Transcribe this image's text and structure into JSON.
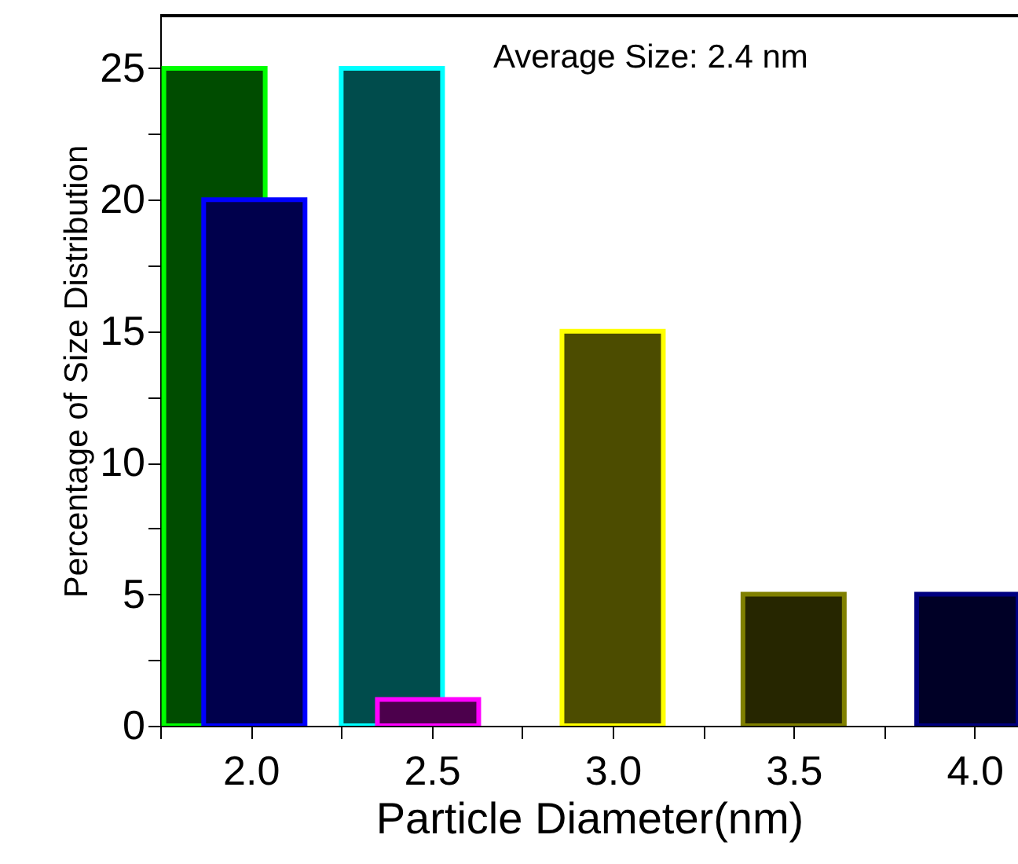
{
  "chart_data": {
    "type": "bar",
    "xlabel": "Particle Diameter(nm)",
    "ylabel": "Percentage of Size Distribution",
    "x": [
      1.9,
      2.01,
      2.39,
      2.49,
      3.0,
      3.5,
      3.98
    ],
    "values": [
      25,
      20,
      25,
      1,
      15,
      5,
      5
    ],
    "colors": [
      "#00ff00",
      "#0000ff",
      "#00ffff",
      "#ff00ff",
      "#ffff00",
      "#808000",
      "#000080"
    ],
    "xlim": [
      1.75,
      4.12
    ],
    "xticks": [
      {
        "value": 1.75,
        "label": null
      },
      {
        "value": 2.0,
        "label": "2.0"
      },
      {
        "value": 2.25,
        "label": null
      },
      {
        "value": 2.5,
        "label": "2.5"
      },
      {
        "value": 2.75,
        "label": null
      },
      {
        "value": 3.0,
        "label": "3.0"
      },
      {
        "value": 3.25,
        "label": null
      },
      {
        "value": 3.5,
        "label": "3.5"
      },
      {
        "value": 3.75,
        "label": null
      },
      {
        "value": 4.0,
        "label": "4.0"
      }
    ],
    "ylim": [
      0,
      27
    ],
    "yticks": [
      0,
      {
        "value": 2.5,
        "label": null
      },
      5,
      {
        "value": 7.5,
        "label": null
      },
      10,
      {
        "value": 12.5,
        "label": null
      },
      15,
      {
        "value": 17.5,
        "label": null
      },
      20,
      {
        "value": 22.5,
        "label": null
      },
      25
    ],
    "annotations": [
      "Average Size: 2.4 nm"
    ],
    "grid": false
  }
}
